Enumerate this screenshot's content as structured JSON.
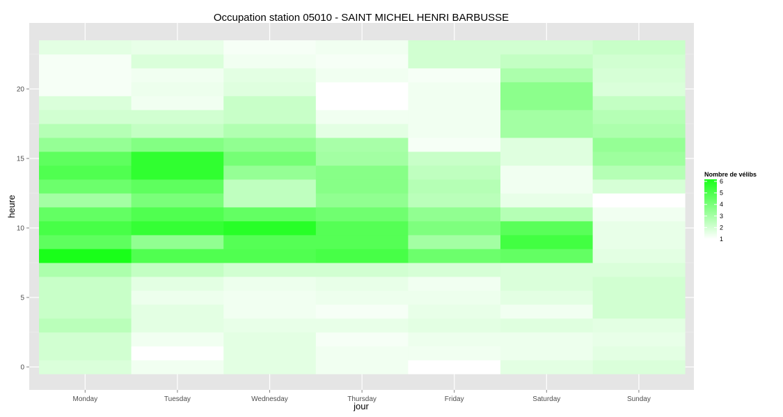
{
  "chart_data": {
    "type": "heatmap",
    "title": "Occupation station 05010 - SAINT MICHEL HENRI BARBUSSE",
    "xlabel": "jour",
    "ylabel": "heure",
    "x_categories": [
      "Monday",
      "Tuesday",
      "Wednesday",
      "Thursday",
      "Friday",
      "Saturday",
      "Sunday"
    ],
    "y_range": [
      -0.5,
      23.5
    ],
    "y_ticks": [
      0,
      5,
      10,
      15,
      20
    ],
    "legend": {
      "title": "Nombre de vélibs",
      "min": 1,
      "max": 6,
      "ticks": [
        1,
        2,
        3,
        4,
        5,
        6
      ],
      "low_color": "#ffffff",
      "high_color": "#19ff19",
      "position": "right"
    },
    "grid": true,
    "values": [
      [
        1.8,
        1.3,
        1.6,
        1.3,
        1.0,
        1.6,
        1.8
      ],
      [
        2.0,
        1.0,
        1.6,
        1.3,
        1.3,
        1.4,
        1.6
      ],
      [
        2.0,
        1.3,
        1.6,
        1.2,
        1.4,
        1.4,
        1.5
      ],
      [
        2.5,
        1.6,
        1.5,
        1.5,
        1.6,
        1.7,
        1.6
      ],
      [
        2.2,
        1.6,
        1.3,
        1.2,
        1.5,
        1.3,
        2.0
      ],
      [
        2.2,
        1.4,
        1.3,
        1.4,
        1.4,
        1.6,
        2.0
      ],
      [
        2.2,
        1.6,
        1.4,
        1.5,
        1.3,
        1.8,
        2.0
      ],
      [
        2.8,
        2.3,
        2.0,
        2.0,
        1.9,
        1.8,
        1.8
      ],
      [
        6.0,
        4.8,
        4.8,
        5.0,
        4.2,
        4.4,
        1.6
      ],
      [
        4.5,
        3.4,
        4.7,
        4.7,
        3.0,
        5.1,
        1.5
      ],
      [
        5.0,
        5.4,
        5.7,
        4.7,
        3.8,
        4.6,
        1.5
      ],
      [
        4.4,
        4.8,
        4.4,
        4.1,
        3.4,
        2.6,
        1.3
      ],
      [
        3.0,
        3.9,
        2.4,
        3.4,
        2.5,
        1.5,
        1.0
      ],
      [
        4.2,
        4.5,
        2.4,
        3.6,
        2.6,
        1.3,
        1.9
      ],
      [
        4.8,
        5.5,
        3.3,
        3.6,
        2.4,
        1.3,
        2.6
      ],
      [
        4.5,
        5.5,
        4.0,
        3.0,
        2.2,
        1.7,
        3.1
      ],
      [
        3.3,
        3.7,
        3.4,
        2.9,
        1.2,
        1.7,
        3.3
      ],
      [
        2.6,
        2.3,
        2.7,
        1.6,
        1.3,
        3.0,
        2.8
      ],
      [
        2.0,
        2.0,
        2.2,
        1.3,
        1.3,
        3.0,
        2.6
      ],
      [
        1.8,
        1.3,
        2.2,
        1.0,
        1.3,
        3.5,
        2.3
      ],
      [
        1.2,
        1.4,
        1.7,
        1.0,
        1.3,
        3.5,
        1.8
      ],
      [
        1.2,
        1.3,
        1.6,
        1.3,
        1.2,
        2.8,
        1.9
      ],
      [
        1.2,
        1.8,
        1.3,
        1.2,
        2.0,
        2.3,
        2.0
      ],
      [
        1.6,
        1.5,
        1.2,
        1.3,
        2.0,
        2.0,
        2.2
      ]
    ]
  }
}
